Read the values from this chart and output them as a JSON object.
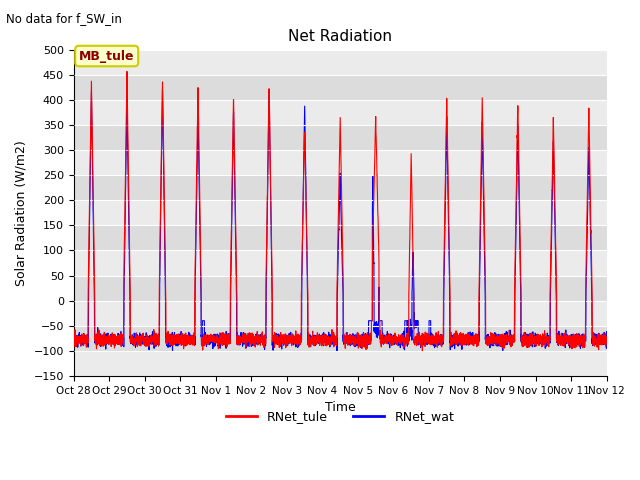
{
  "title": "Net Radiation",
  "subtitle": "No data for f_SW_in",
  "ylabel": "Solar Radiation (W/m2)",
  "xlabel": "Time",
  "ylim": [
    -150,
    500
  ],
  "yticks": [
    -150,
    -100,
    -50,
    0,
    50,
    100,
    150,
    200,
    250,
    300,
    350,
    400,
    450,
    500
  ],
  "xtick_labels": [
    "Oct 28",
    "Oct 29",
    "Oct 30",
    "Oct 31",
    "Nov 1",
    "Nov 2",
    "Nov 3",
    "Nov 4",
    "Nov 5",
    "Nov 6",
    "Nov 7",
    "Nov 8",
    "Nov 9",
    "Nov 10",
    "Nov 11",
    "Nov 12"
  ],
  "color_red": "#FF0000",
  "color_blue": "#0000FF",
  "bg_color_light": "#EBEBEB",
  "bg_color_dark": "#DCDCDC",
  "legend_label1": "RNet_tule",
  "legend_label2": "RNet_wat",
  "annotation_text": "MB_tule",
  "annotation_bg": "#FFFFCC",
  "annotation_border": "#CCCC00",
  "lw": 0.8,
  "figsize": [
    6.4,
    4.8
  ],
  "dpi": 100
}
